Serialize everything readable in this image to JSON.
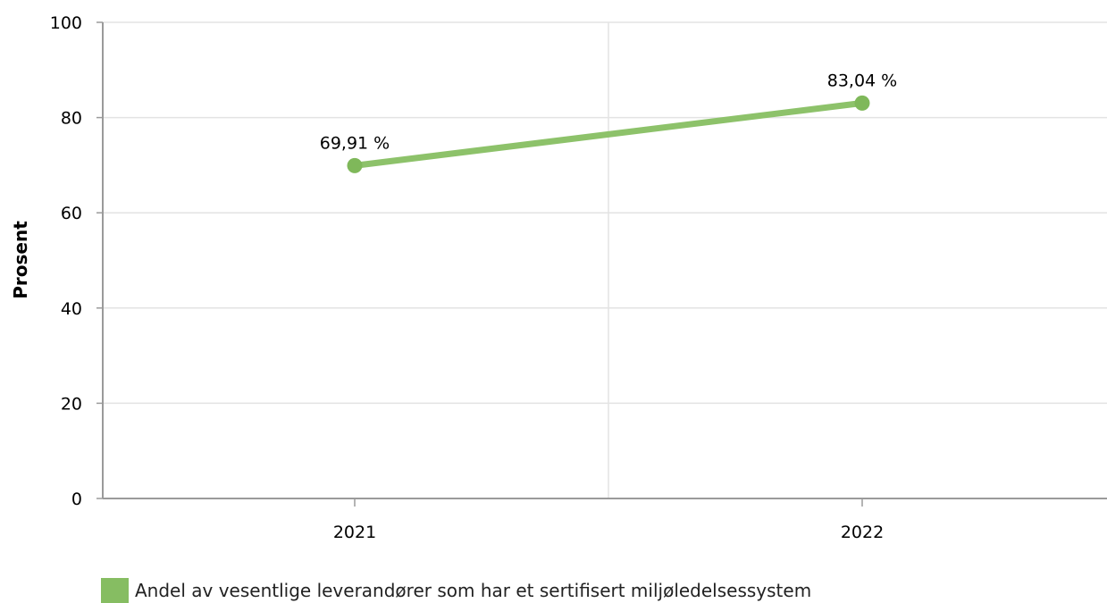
{
  "chart_data": {
    "type": "line",
    "categories": [
      "2021",
      "2022"
    ],
    "series": [
      {
        "name": "Andel av vesentlige leverandører som har et sertifisert miljøledelsessystem",
        "values": [
          69.91,
          83.04
        ],
        "data_labels": [
          "69,91 %",
          "83,04 %"
        ],
        "color": "#8dc26a"
      }
    ],
    "title": "",
    "xlabel": "",
    "ylabel": "Prosent",
    "ylim": [
      0,
      100
    ],
    "yticks": [
      0,
      20,
      40,
      60,
      80,
      100
    ],
    "grid": true,
    "legend_position": "bottom-left"
  },
  "colors": {
    "series_line": "#8dc26a",
    "series_marker": "#7fb85a",
    "legend_swatch": "#86bd62",
    "grid": "#e3e3e3",
    "axis": "#9a9a9a"
  }
}
